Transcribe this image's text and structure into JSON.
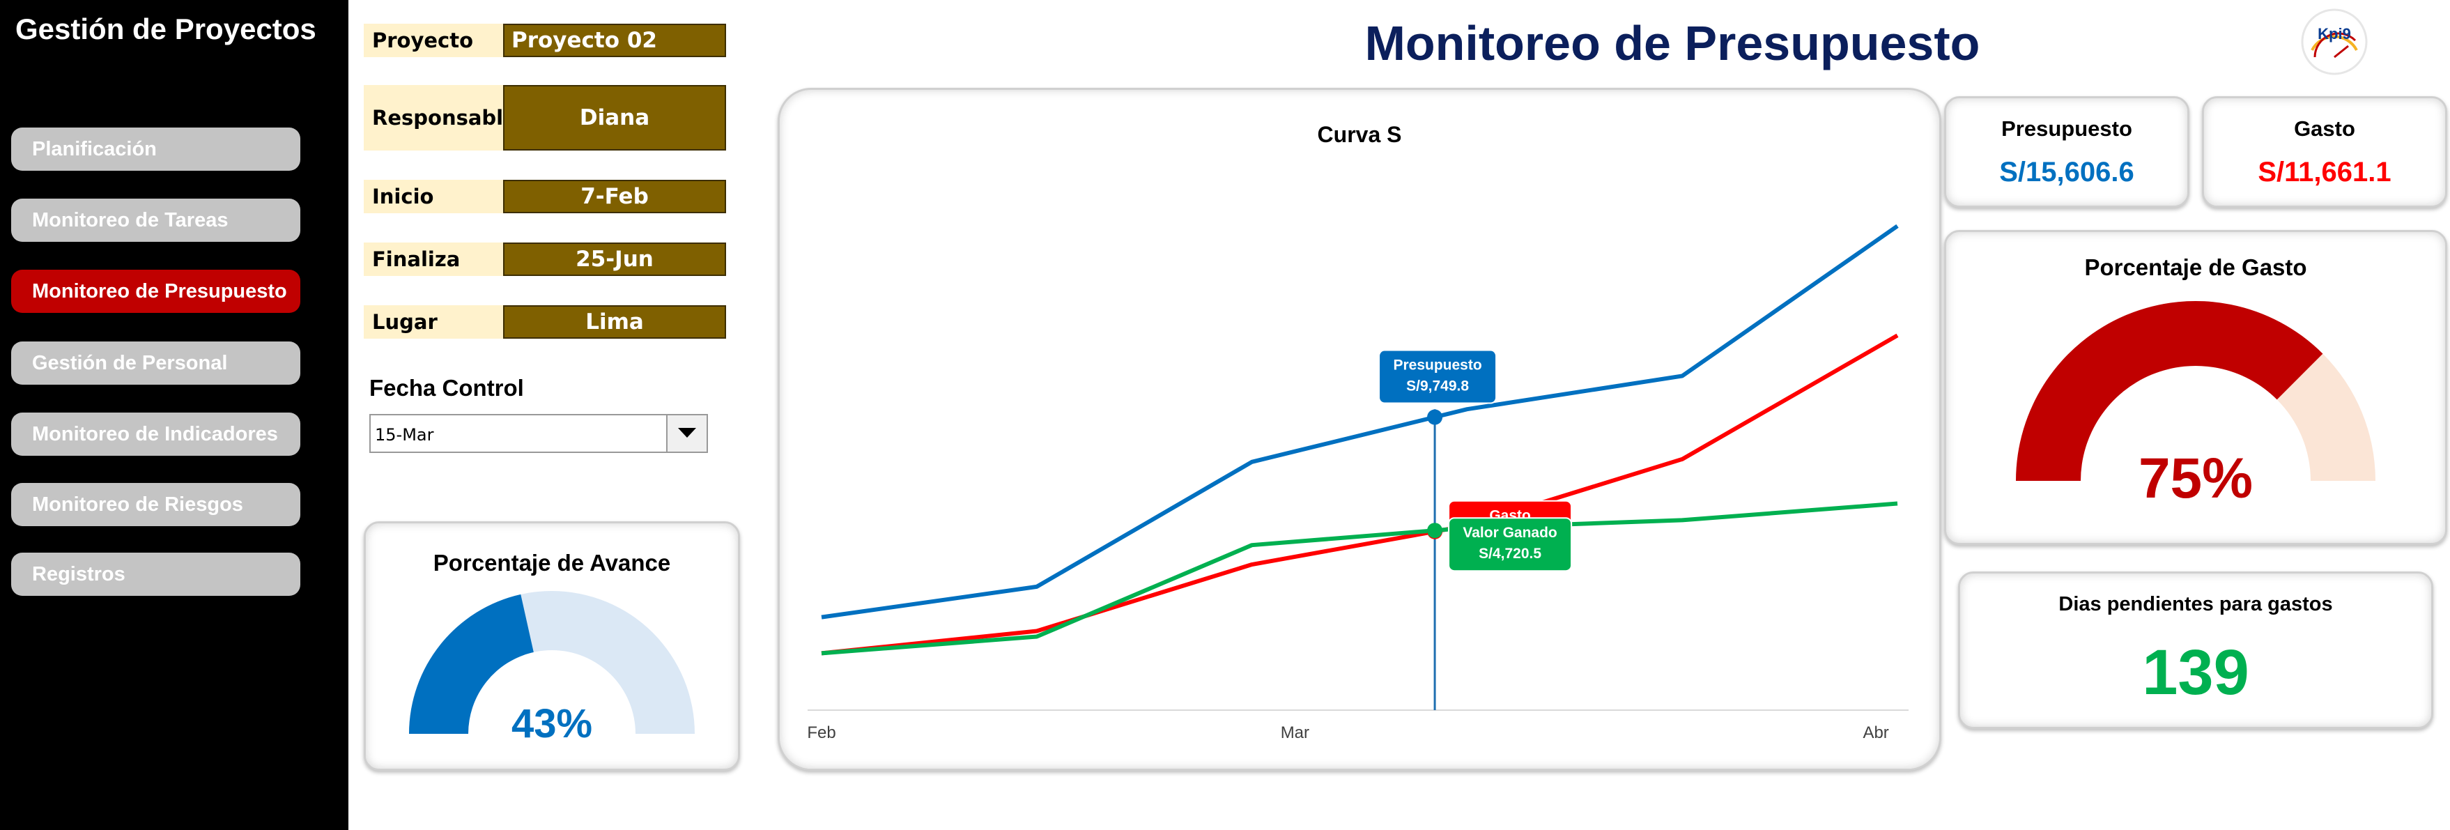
{
  "sidebar": {
    "title": "Gestión de Proyectos",
    "items": [
      {
        "label": "Planificación",
        "active": false
      },
      {
        "label": "Monitoreo de Tareas",
        "active": false
      },
      {
        "label": "Monitoreo de Presupuesto",
        "active": true
      },
      {
        "label": "Gestión de Personal",
        "active": false
      },
      {
        "label": "Monitoreo de Indicadores",
        "active": false
      },
      {
        "label": "Monitoreo de Riesgos",
        "active": false
      },
      {
        "label": "Registros",
        "active": false
      }
    ]
  },
  "info": {
    "proyecto_label": "Proyecto",
    "proyecto_value": "Proyecto 02",
    "responsable_label": "Responsable",
    "responsable_value": "Diana",
    "inicio_label": "Inicio",
    "inicio_value": "7-Feb",
    "finaliza_label": "Finaliza",
    "finaliza_value": "25-Jun",
    "lugar_label": "Lugar",
    "lugar_value": "Lima"
  },
  "fecha_control": {
    "label": "Fecha Control",
    "value": "15-Mar"
  },
  "header": {
    "title": "Monitoreo de Presupuesto",
    "logo_text": "Kpi9"
  },
  "avance": {
    "title": "Porcentaje de Avance",
    "value_text": "43%",
    "fraction": 0.43,
    "color": "#0070c0",
    "track_color": "#dbe8f5"
  },
  "presupuesto_card": {
    "title": "Presupuesto",
    "value": "S/15,606.6",
    "color": "#0070c0"
  },
  "gasto_card": {
    "title": "Gasto",
    "value": "S/11,661.1",
    "color": "#ff0000"
  },
  "porcentaje_gasto": {
    "title": "Porcentaje de Gasto",
    "value_text": "75%",
    "fraction": 0.75,
    "color": "#c00000",
    "track_color": "#fbe5d6"
  },
  "dias_pendientes": {
    "title": "Dias pendientes para gastos",
    "value": "139",
    "color": "#00b050"
  },
  "chart_data": {
    "type": "line",
    "title": "Curva S",
    "x_tick_labels": [
      "Feb",
      "Mar",
      "Abr"
    ],
    "x": [
      0,
      1,
      2,
      3,
      4,
      5
    ],
    "series": [
      {
        "name": "Presupuesto",
        "color": "#0070c0",
        "values": [
          1500,
          2600,
          7100,
          9000,
          10200,
          15606.6
        ]
      },
      {
        "name": "Gasto",
        "color": "#ff0000",
        "values": [
          200,
          1000,
          3400,
          4800,
          7200,
          11661.1
        ]
      },
      {
        "name": "Valor Ganado",
        "color": "#00b050",
        "values": [
          200,
          800,
          4100,
          4720.5,
          5000,
          5600
        ]
      }
    ],
    "ylim": [
      -1600,
      17500
    ],
    "control_x": 2.85,
    "callouts": [
      {
        "series": "Presupuesto",
        "title": "Presupuesto",
        "value": "S/9,749.8",
        "color": "#0070c0"
      },
      {
        "series": "Gasto",
        "title": "Gasto",
        "value": "",
        "color": "#ff0000"
      },
      {
        "series": "Valor Ganado",
        "title": "Valor Ganado",
        "value": "S/4,720.5",
        "color": "#00b050"
      }
    ]
  }
}
